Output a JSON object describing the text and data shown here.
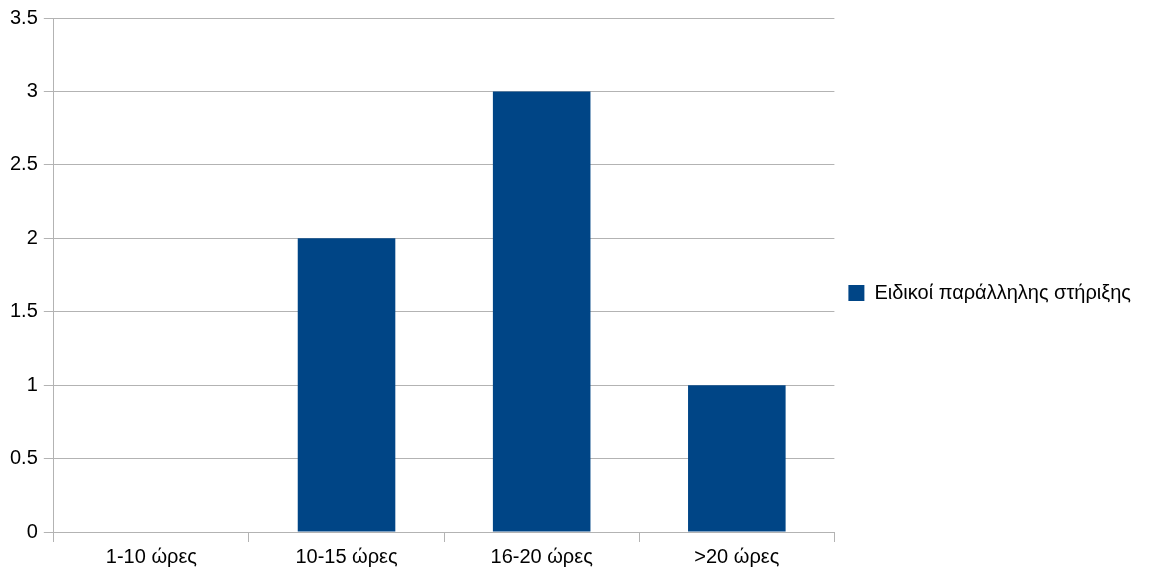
{
  "chart_data": {
    "type": "bar",
    "categories": [
      "1-10 ώρες",
      "10-15 ώρες",
      "16-20 ώρες",
      ">20 ώρες"
    ],
    "series": [
      {
        "name": "Ειδικοί παράλληλης στήριξης",
        "color": "#004586",
        "values": [
          0,
          2,
          3,
          1
        ]
      }
    ],
    "ylim": [
      0,
      3.5
    ],
    "yticks": [
      0,
      0.5,
      1,
      1.5,
      2,
      2.5,
      3,
      3.5
    ],
    "grid": "y",
    "legend": "right"
  }
}
